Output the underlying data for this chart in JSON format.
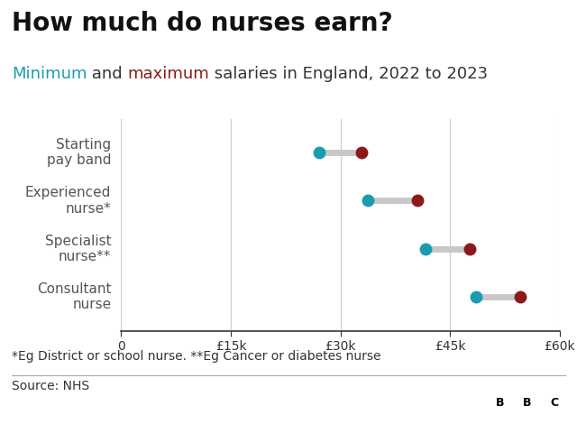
{
  "title": "How much do nurses earn?",
  "subtitle_parts": [
    {
      "text": "Minimum",
      "color": "#1a9bb0"
    },
    {
      "text": " and ",
      "color": "#333333"
    },
    {
      "text": "maximum",
      "color": "#8b1a1a"
    },
    {
      "text": " salaries in England, 2022 to 2023",
      "color": "#333333"
    }
  ],
  "categories": [
    "Starting\npay band",
    "Experienced\nnurse*",
    "Specialist\nnurse**",
    "Consultant\nnurse"
  ],
  "min_values": [
    27055,
    33706,
    41659,
    48526
  ],
  "max_values": [
    32934,
    40588,
    47672,
    54619
  ],
  "min_color": "#1a9bb0",
  "max_color": "#8b1a1a",
  "connector_color": "#c8c8c8",
  "dot_size": 100,
  "connector_linewidth": 5,
  "xlim": [
    0,
    60000
  ],
  "xticks": [
    0,
    15000,
    30000,
    45000,
    60000
  ],
  "xtick_labels": [
    "0",
    "£15k",
    "£30k",
    "£45k",
    "£60k"
  ],
  "footnote1": "*Eg District or school nurse. **Eg Cancer or diabetes nurse",
  "footnote2": "Source: NHS",
  "bbc_logo": "BBC",
  "background_color": "#ffffff",
  "grid_color": "#cccccc",
  "title_fontsize": 20,
  "subtitle_fontsize": 13,
  "category_fontsize": 11,
  "tick_fontsize": 10,
  "footnote_fontsize": 10
}
